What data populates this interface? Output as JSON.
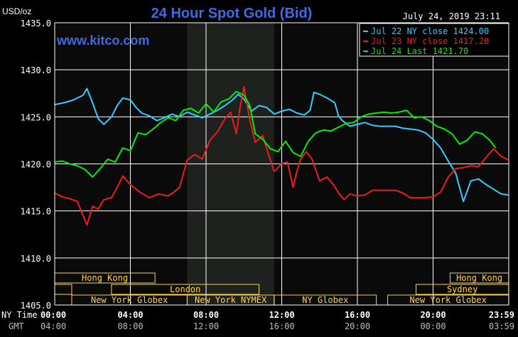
{
  "header": {
    "unit": "USD/oz",
    "title": "24 Hour Spot Gold (Bid)",
    "datetime": "July 24, 2019 23:11",
    "watermark": "www.kitco.com"
  },
  "colors": {
    "background": "#000000",
    "plot_background": "#0a0a0a",
    "highlight_band": "#1e211e",
    "grid": "#ffffff",
    "title": "#4169e1",
    "axis_text": "#ffffff",
    "session_box": "#ffd24d",
    "gmt_text": "#bdbdbd"
  },
  "chart_data": {
    "type": "line",
    "title": "24 Hour Spot Gold (Bid)",
    "ylabel": "USD/oz",
    "ylim": [
      1405,
      1435
    ],
    "yticks": [
      "1435.0",
      "1430.0",
      "1425.0",
      "1420.0",
      "1415.0",
      "1410.0",
      "1405.0"
    ],
    "yvalues": [
      1435,
      1430,
      1425,
      1420,
      1415,
      1410,
      1405
    ],
    "xlim_hours": [
      0,
      24
    ],
    "x_label_ny": "NY Time",
    "x_label_gmt": "GMT",
    "xticks_ny": [
      "00:00",
      "04:00",
      "08:00",
      "12:00",
      "16:00",
      "20:00",
      "23:59"
    ],
    "xticks_gmt": [
      "04:00",
      "08:00",
      "12:00",
      "16:00",
      "20:00",
      "00:00",
      "03:59"
    ],
    "xtick_hours": [
      0,
      4,
      8,
      12,
      16,
      20,
      24
    ],
    "grid": true,
    "highlight_hours": [
      7.0,
      11.6
    ],
    "legend_position": "top-right",
    "series": [
      {
        "name": "Jul 22 NY close 1424.00",
        "color": "#33ccff",
        "x": [
          0,
          0.5,
          1,
          1.5,
          1.7,
          2,
          2.3,
          2.6,
          3,
          3.3,
          3.6,
          4,
          4.3,
          4.6,
          5,
          5.4,
          5.8,
          6.2,
          6.6,
          7,
          7.4,
          7.8,
          8.2,
          8.6,
          9,
          9.4,
          9.7,
          10,
          10.4,
          10.8,
          11.2,
          11.6,
          12,
          12.4,
          12.8,
          13.2,
          13.5,
          13.7,
          14,
          14.4,
          14.8,
          15,
          15.2,
          15.6,
          16,
          16.4,
          16.8,
          17.2,
          17.6,
          18,
          18.4,
          18.8,
          19.2,
          19.6,
          20,
          20.4,
          20.8,
          21.2,
          21.6,
          22,
          22.4,
          22.8,
          23.2,
          23.6,
          24
        ],
        "values": [
          1426.3,
          1426.5,
          1426.8,
          1427.3,
          1428.0,
          1426.5,
          1424.8,
          1424.2,
          1425.0,
          1426.2,
          1427.0,
          1426.8,
          1426.0,
          1425.4,
          1425.1,
          1424.6,
          1424.9,
          1425.3,
          1425.0,
          1425.5,
          1425.2,
          1424.9,
          1425.3,
          1425.7,
          1426.2,
          1426.8,
          1427.4,
          1426.9,
          1425.6,
          1426.2,
          1426.0,
          1425.3,
          1425.6,
          1425.8,
          1425.4,
          1425.2,
          1425.7,
          1427.6,
          1427.4,
          1427.0,
          1426.5,
          1425.1,
          1424.6,
          1424.0,
          1424.2,
          1424.4,
          1424.1,
          1424.0,
          1424.0,
          1424.0,
          1423.8,
          1423.7,
          1423.6,
          1423.3,
          1422.6,
          1421.7,
          1420.3,
          1419.0,
          1416.0,
          1418.2,
          1418.4,
          1417.8,
          1417.3,
          1416.8,
          1416.7
        ]
      },
      {
        "name": "Jul 23 NY close 1417.20",
        "color": "#ee1c1c",
        "x": [
          0,
          0.4,
          0.8,
          1.2,
          1.5,
          1.7,
          2,
          2.3,
          2.6,
          3,
          3.3,
          3.6,
          4,
          4.5,
          5,
          5.5,
          6,
          6.3,
          6.6,
          7,
          7.4,
          7.8,
          8.2,
          8.6,
          9,
          9.3,
          9.6,
          9.8,
          10,
          10.3,
          10.6,
          11,
          11.3,
          11.6,
          12,
          12.3,
          12.6,
          12.8,
          13,
          13.3,
          13.6,
          14,
          14.4,
          14.8,
          15,
          15.3,
          15.6,
          16,
          16.4,
          16.8,
          17.2,
          17.6,
          18,
          18.4,
          18.8,
          19.2,
          19.6,
          20,
          20.4,
          20.8,
          21.2,
          21.6,
          22,
          22.4,
          22.8,
          23.2,
          23.6,
          24
        ],
        "values": [
          1416.9,
          1416.5,
          1416.3,
          1416.0,
          1414.5,
          1413.5,
          1415.5,
          1415.2,
          1416.2,
          1416.4,
          1417.5,
          1418.7,
          1417.8,
          1417.0,
          1416.4,
          1416.8,
          1416.6,
          1417.0,
          1417.5,
          1420.4,
          1421.0,
          1420.5,
          1422.5,
          1423.4,
          1424.8,
          1425.5,
          1423.2,
          1426.0,
          1428.2,
          1424.8,
          1422.3,
          1423.0,
          1421.0,
          1419.2,
          1420.0,
          1420.2,
          1417.5,
          1419.2,
          1420.5,
          1421.3,
          1420.5,
          1418.2,
          1418.6,
          1417.6,
          1416.9,
          1416.2,
          1416.8,
          1416.6,
          1416.7,
          1417.2,
          1417.2,
          1417.2,
          1417.2,
          1416.9,
          1416.4,
          1416.4,
          1416.4,
          1416.5,
          1417.0,
          1418.6,
          1419.5,
          1419.6,
          1419.8,
          1419.7,
          1420.7,
          1421.6,
          1420.8,
          1420.4
        ]
      },
      {
        "name": "Jul 24 Last 1421.70",
        "color": "#00ee00",
        "x": [
          0,
          0.4,
          0.8,
          1.2,
          1.6,
          2,
          2.4,
          2.8,
          3.2,
          3.6,
          4,
          4.4,
          4.8,
          5.2,
          5.6,
          6,
          6.4,
          6.8,
          7.2,
          7.6,
          8,
          8.4,
          8.8,
          9.2,
          9.6,
          10,
          10.3,
          10.6,
          11,
          11.4,
          11.8,
          12.2,
          12.6,
          13,
          13.4,
          13.8,
          14.2,
          14.6,
          15,
          15.4,
          15.8,
          16.2,
          16.6,
          17,
          17.4,
          17.8,
          18.2,
          18.6,
          19,
          19.4,
          19.8,
          20.2,
          20.6,
          21,
          21.4,
          21.8,
          22.2,
          22.6,
          23,
          23.3
        ],
        "values": [
          1420.2,
          1420.3,
          1420.0,
          1419.8,
          1419.4,
          1418.6,
          1419.5,
          1420.5,
          1420.2,
          1421.7,
          1421.4,
          1423.3,
          1423.1,
          1423.7,
          1424.4,
          1424.9,
          1424.6,
          1425.7,
          1425.9,
          1425.4,
          1426.4,
          1425.5,
          1426.6,
          1426.9,
          1427.7,
          1427.3,
          1426.3,
          1423.2,
          1422.6,
          1421.6,
          1421.3,
          1422.4,
          1421.2,
          1420.8,
          1422.4,
          1423.3,
          1423.6,
          1423.5,
          1423.9,
          1424.3,
          1424.4,
          1425.0,
          1425.3,
          1425.4,
          1425.5,
          1425.4,
          1425.5,
          1425.7,
          1424.9,
          1425.0,
          1424.6,
          1424.0,
          1423.7,
          1423.2,
          1422.1,
          1422.5,
          1423.4,
          1423.2,
          1422.5,
          1421.7
        ]
      }
    ],
    "sessions": [
      {
        "label": "Hong Kong",
        "start": 0,
        "end": 5.3,
        "row": 0
      },
      {
        "label": "Hong Kong",
        "start": 20.9,
        "end": 23.99,
        "row": 0
      },
      {
        "label": "",
        "start": 0,
        "end": 0.9,
        "row": 1
      },
      {
        "label": "London",
        "start": 3,
        "end": 10.8,
        "row": 1
      },
      {
        "label": "Sydney",
        "start": 19.1,
        "end": 23.99,
        "row": 1
      },
      {
        "label": "New York Globex",
        "start": 0.9,
        "end": 7.0,
        "row": 2
      },
      {
        "label": "New York NYMEX",
        "start": 7.0,
        "end": 11.6,
        "row": 2
      },
      {
        "label": "NY Globex",
        "start": 11.6,
        "end": 17.0,
        "row": 2
      },
      {
        "label": "New York Globex",
        "start": 17.6,
        "end": 23.99,
        "row": 2
      }
    ]
  }
}
